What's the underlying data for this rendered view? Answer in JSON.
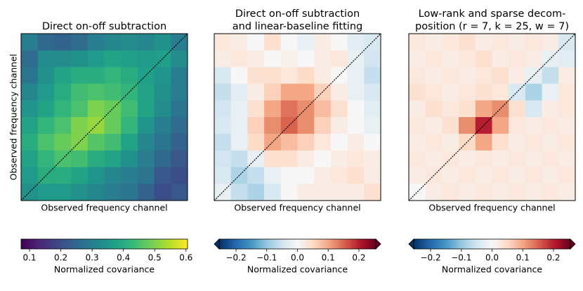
{
  "chart_data": [
    {
      "type": "heatmap",
      "title": [
        "Direct on-off subtraction"
      ],
      "xlabel": "Observed frequency channel",
      "ylabel": "Observed frequency channel",
      "colormap": "viridis",
      "clim": [
        0.073,
        0.605
      ],
      "extend": "neither",
      "colorbar_label": "Normalized covariance",
      "colorbar_ticks": [
        0.1,
        0.2,
        0.3,
        0.4,
        0.5,
        0.6
      ],
      "z": [
        [
          0.3,
          0.25,
          0.24,
          0.26,
          0.3,
          0.32,
          0.33,
          0.32,
          0.34,
          0.3
        ],
        [
          0.26,
          0.33,
          0.33,
          0.34,
          0.36,
          0.38,
          0.37,
          0.36,
          0.37,
          0.33
        ],
        [
          0.28,
          0.34,
          0.38,
          0.4,
          0.4,
          0.42,
          0.4,
          0.37,
          0.35,
          0.3
        ],
        [
          0.32,
          0.36,
          0.4,
          0.44,
          0.45,
          0.44,
          0.42,
          0.38,
          0.34,
          0.3
        ],
        [
          0.35,
          0.38,
          0.42,
          0.45,
          0.5,
          0.48,
          0.44,
          0.38,
          0.33,
          0.28
        ],
        [
          0.38,
          0.42,
          0.45,
          0.5,
          0.52,
          0.48,
          0.42,
          0.35,
          0.3,
          0.26
        ],
        [
          0.4,
          0.45,
          0.48,
          0.5,
          0.46,
          0.44,
          0.38,
          0.32,
          0.28,
          0.24
        ],
        [
          0.38,
          0.42,
          0.45,
          0.44,
          0.4,
          0.38,
          0.34,
          0.3,
          0.25,
          0.22
        ],
        [
          0.36,
          0.4,
          0.4,
          0.38,
          0.35,
          0.32,
          0.3,
          0.28,
          0.22,
          0.2
        ],
        [
          0.34,
          0.36,
          0.36,
          0.34,
          0.32,
          0.3,
          0.28,
          0.24,
          0.2,
          0.22
        ]
      ]
    },
    {
      "type": "heatmap",
      "title": [
        "Direct on-off subtraction",
        "and linear-baseline fitting"
      ],
      "xlabel": "Observed frequency channel",
      "colormap": "RdBu_r",
      "clim": [
        -0.255,
        0.255
      ],
      "extend": "both",
      "colorbar_label": "Normalized covariance",
      "colorbar_ticks": [
        {
          "value": -0.2,
          "label": "−0.2"
        },
        {
          "value": -0.1,
          "label": "−0.1"
        },
        {
          "value": 0,
          "label": "0.0"
        },
        0.1,
        0.2
      ],
      "z": [
        [
          0.03,
          0.02,
          0.0,
          0.04,
          0.0,
          -0.02,
          0.02,
          0.0,
          -0.03,
          -0.04
        ],
        [
          0.02,
          0.03,
          0.02,
          0.0,
          0.01,
          0.0,
          0.02,
          0.03,
          -0.02,
          -0.05
        ],
        [
          -0.04,
          0.0,
          0.04,
          0.04,
          0.03,
          0.05,
          0.02,
          0.0,
          -0.02,
          -0.06
        ],
        [
          -0.06,
          -0.03,
          0.02,
          0.06,
          0.1,
          0.1,
          0.06,
          0.02,
          -0.02,
          -0.04
        ],
        [
          -0.05,
          -0.02,
          0.04,
          0.1,
          0.14,
          0.12,
          0.08,
          0.04,
          0.0,
          -0.03
        ],
        [
          -0.04,
          -0.02,
          0.06,
          0.12,
          0.15,
          0.12,
          0.06,
          0.02,
          0.0,
          -0.02
        ],
        [
          -0.06,
          -0.02,
          0.05,
          0.1,
          0.08,
          0.06,
          0.03,
          0.0,
          0.02,
          0.0
        ],
        [
          -0.05,
          -0.06,
          -0.02,
          0.04,
          0.04,
          0.02,
          0.0,
          0.02,
          0.03,
          0.02
        ],
        [
          -0.04,
          -0.08,
          -0.06,
          -0.02,
          0.0,
          0.0,
          0.02,
          0.03,
          0.04,
          0.02
        ],
        [
          -0.02,
          -0.06,
          -0.08,
          -0.04,
          0.0,
          0.02,
          0.02,
          0.02,
          0.02,
          0.04
        ]
      ]
    },
    {
      "type": "heatmap",
      "title": [
        "Low-rank and sparse decom-",
        "position (r = 7, k = 25, w = 7)"
      ],
      "xlabel": "Observed frequency channel",
      "colormap": "RdBu_r",
      "clim": [
        -0.255,
        0.255
      ],
      "extend": "both",
      "colorbar_label": "Normalized covariance",
      "colorbar_ticks": [
        {
          "value": -0.2,
          "label": "−0.2"
        },
        {
          "value": -0.1,
          "label": "−0.1"
        },
        {
          "value": 0,
          "label": "0.0"
        },
        0.1,
        0.2
      ],
      "z": [
        [
          0.03,
          0.02,
          0.03,
          0.04,
          0.02,
          0.03,
          0.02,
          0.03,
          0.02,
          -0.04
        ],
        [
          0.02,
          0.03,
          0.02,
          0.03,
          0.04,
          0.02,
          0.03,
          0.02,
          -0.02,
          -0.03
        ],
        [
          0.03,
          0.02,
          0.03,
          0.02,
          0.03,
          0.04,
          0.02,
          -0.02,
          -0.06,
          0.02
        ],
        [
          0.04,
          0.03,
          0.02,
          0.03,
          0.04,
          0.03,
          -0.04,
          -0.08,
          -0.02,
          0.03
        ],
        [
          0.02,
          0.04,
          0.03,
          0.04,
          0.1,
          0.12,
          0.04,
          -0.04,
          0.02,
          0.03
        ],
        [
          0.03,
          0.02,
          0.04,
          0.12,
          0.2,
          0.1,
          0.03,
          0.02,
          0.03,
          0.02
        ],
        [
          0.02,
          0.03,
          0.02,
          0.05,
          0.1,
          0.04,
          0.02,
          0.03,
          0.02,
          0.03
        ],
        [
          0.03,
          0.02,
          0.03,
          0.02,
          0.03,
          0.02,
          0.03,
          0.02,
          0.03,
          0.02
        ],
        [
          0.02,
          0.03,
          0.02,
          0.03,
          0.02,
          0.03,
          0.02,
          0.03,
          0.02,
          0.03
        ],
        [
          0.0,
          0.02,
          0.03,
          0.02,
          0.03,
          0.02,
          0.03,
          0.02,
          0.03,
          0.02
        ]
      ]
    }
  ]
}
